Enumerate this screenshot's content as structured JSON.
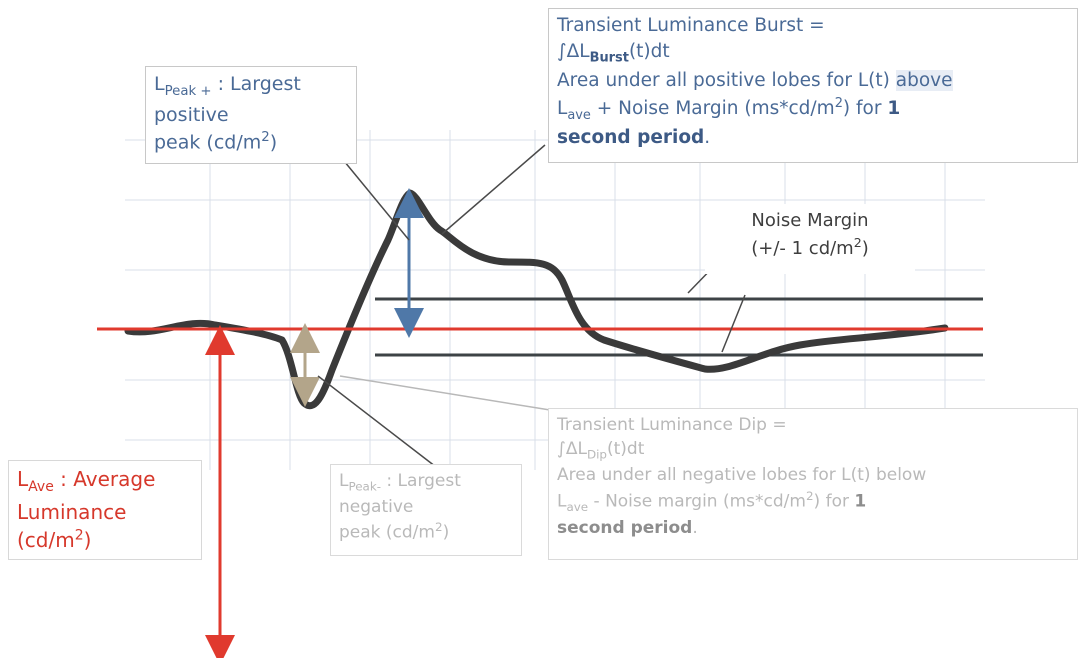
{
  "labels": {
    "peak_pos": {
      "line1_sym": "L",
      "line1_sub": "Peak +",
      "line1_rest": " : Largest",
      "line2": "positive",
      "line3_pre": "peak (cd/m",
      "line3_sup": "2",
      "line3_post": ")"
    },
    "burst": {
      "line1": "Transient Luminance Burst =",
      "line2_pre": "∫ΔL",
      "line2_sub": "Burst",
      "line2_post": "(t)dt",
      "line3_pre": "Area under all positive lobes for L(t) ",
      "line3_hl": "above",
      "line4_sym": "L",
      "line4_sub": "ave",
      "line4_mid": " + Noise Margin (ms*cd/m",
      "line4_sup": "2",
      "line4_post": ") for ",
      "line4_bold": "1",
      "line5_bold": "second period",
      "line5_post": "."
    },
    "noise": {
      "line1": "Noise Margin",
      "line2_pre": "(+/- 1 cd/m",
      "line2_sup": "2",
      "line2_post": ")"
    },
    "dip": {
      "line1": "Transient Luminance Dip =",
      "line2_pre": "∫ΔL",
      "line2_sub": "Dip",
      "line2_post": "(t)dt",
      "line3": "Area under all negative lobes for L(t) below",
      "line4_sym": "L",
      "line4_sub": "ave",
      "line4_mid": " - Noise margin (ms*cd/m",
      "line4_sup": "2",
      "line4_post": ") for ",
      "line4_bold": "1",
      "line5_bold": "second period",
      "line5_post": "."
    },
    "peak_neg": {
      "line1_sym": "L",
      "line1_sub": "Peak-",
      "line1_rest": " : Largest",
      "line2": "negative",
      "line3_pre": "peak (cd/m",
      "line3_sup": "2",
      "line3_post": ")"
    },
    "ave": {
      "line1_sym": "L",
      "line1_sub": "Ave",
      "line1_rest": " : Average",
      "line2": "Luminance",
      "line3_pre": "(cd/m",
      "line3_sup": "2",
      "line3_post": ")"
    }
  },
  "colors": {
    "average_line": "#e03a2e",
    "noise_lines": "#3d4346",
    "signal": "#3a3a3a",
    "peak_pos_arrow": "#4f78a8",
    "peak_neg_arrow": "#b3a58a",
    "grid": "#cfd7e3"
  }
}
